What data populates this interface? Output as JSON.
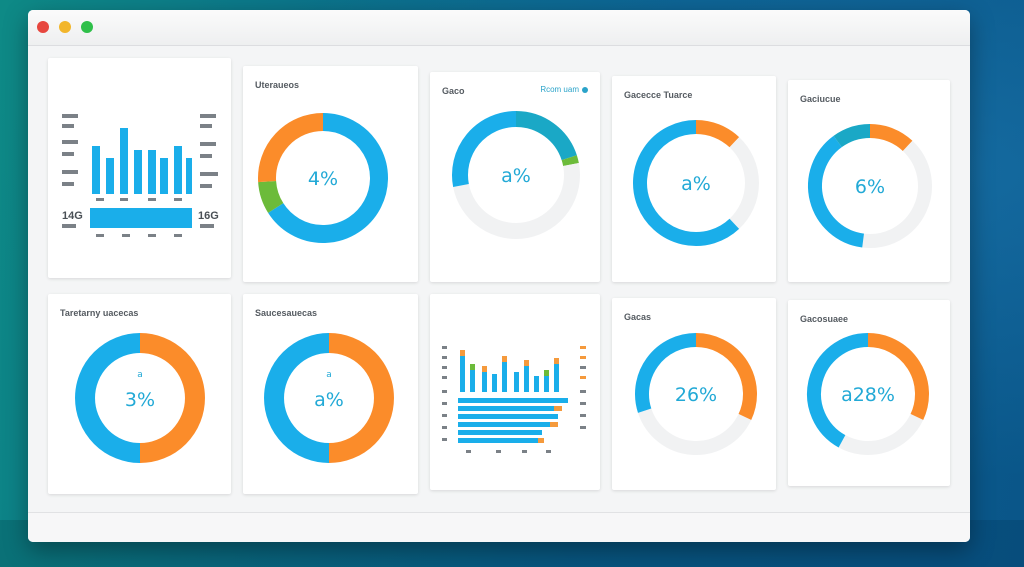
{
  "colors": {
    "blue": "#1aaeea",
    "orange": "#fb8c2a",
    "green": "#6cbb3a",
    "teal": "#1aa8c6",
    "track": "#f1f2f3"
  },
  "window": {
    "traffic_lights": [
      "close",
      "minimize",
      "zoom"
    ]
  },
  "cards": {
    "c1": {
      "side_labels": [
        "14G",
        "16G"
      ]
    },
    "c2": {
      "title": "Uteraueos",
      "pct": "4%",
      "chart_data": {
        "type": "pie",
        "values": [
          {
            "color": "blue",
            "value": 66
          },
          {
            "color": "green",
            "value": 8
          },
          {
            "color": "orange",
            "value": 26
          }
        ],
        "hole": true
      }
    },
    "c3": {
      "title": "Gaco",
      "link": "Rcom uam",
      "pct": "a%",
      "chart_data": {
        "type": "pie",
        "values": [
          {
            "color": "teal",
            "value": 20
          },
          {
            "color": "green",
            "value": 2
          },
          {
            "color": "track",
            "value": 50
          },
          {
            "color": "blue",
            "value": 28
          }
        ],
        "hole": true
      }
    },
    "c4": {
      "title": "Gacecce Tuarce",
      "pct": "a%",
      "chart_data": {
        "type": "pie",
        "values": [
          {
            "color": "orange",
            "value": 12
          },
          {
            "color": "track",
            "value": 26
          },
          {
            "color": "blue",
            "value": 62
          }
        ],
        "hole": true
      }
    },
    "c5": {
      "title": "Gaciucue",
      "pct": "6%",
      "chart_data": {
        "type": "pie",
        "values": [
          {
            "color": "orange",
            "value": 12
          },
          {
            "color": "track",
            "value": 40
          },
          {
            "color": "blue",
            "value": 38
          },
          {
            "color": "teal",
            "value": 10
          }
        ],
        "hole": true
      }
    },
    "c6": {
      "title": "Taretarny uacecas",
      "small": "a",
      "pct": "3%",
      "chart_data": {
        "type": "pie",
        "values": [
          {
            "color": "orange",
            "value": 50
          },
          {
            "color": "blue",
            "value": 50
          }
        ],
        "hole": true
      }
    },
    "c7": {
      "title": "Saucesauecas",
      "small": "a",
      "pct": "a%",
      "chart_data": {
        "type": "pie",
        "values": [
          {
            "color": "orange",
            "value": 50
          },
          {
            "color": "blue",
            "value": 50
          }
        ],
        "hole": true
      }
    },
    "c9": {
      "title": "Gacas",
      "pct": "26%",
      "chart_data": {
        "type": "pie",
        "values": [
          {
            "color": "orange",
            "value": 32
          },
          {
            "color": "track",
            "value": 38
          },
          {
            "color": "blue",
            "value": 30
          }
        ],
        "hole": true
      }
    },
    "c10": {
      "title": "Gacosuaee",
      "pct": "a28%",
      "chart_data": {
        "type": "pie",
        "values": [
          {
            "color": "orange",
            "value": 32
          },
          {
            "color": "track",
            "value": 26
          },
          {
            "color": "blue",
            "value": 42
          }
        ],
        "hole": true
      }
    }
  }
}
